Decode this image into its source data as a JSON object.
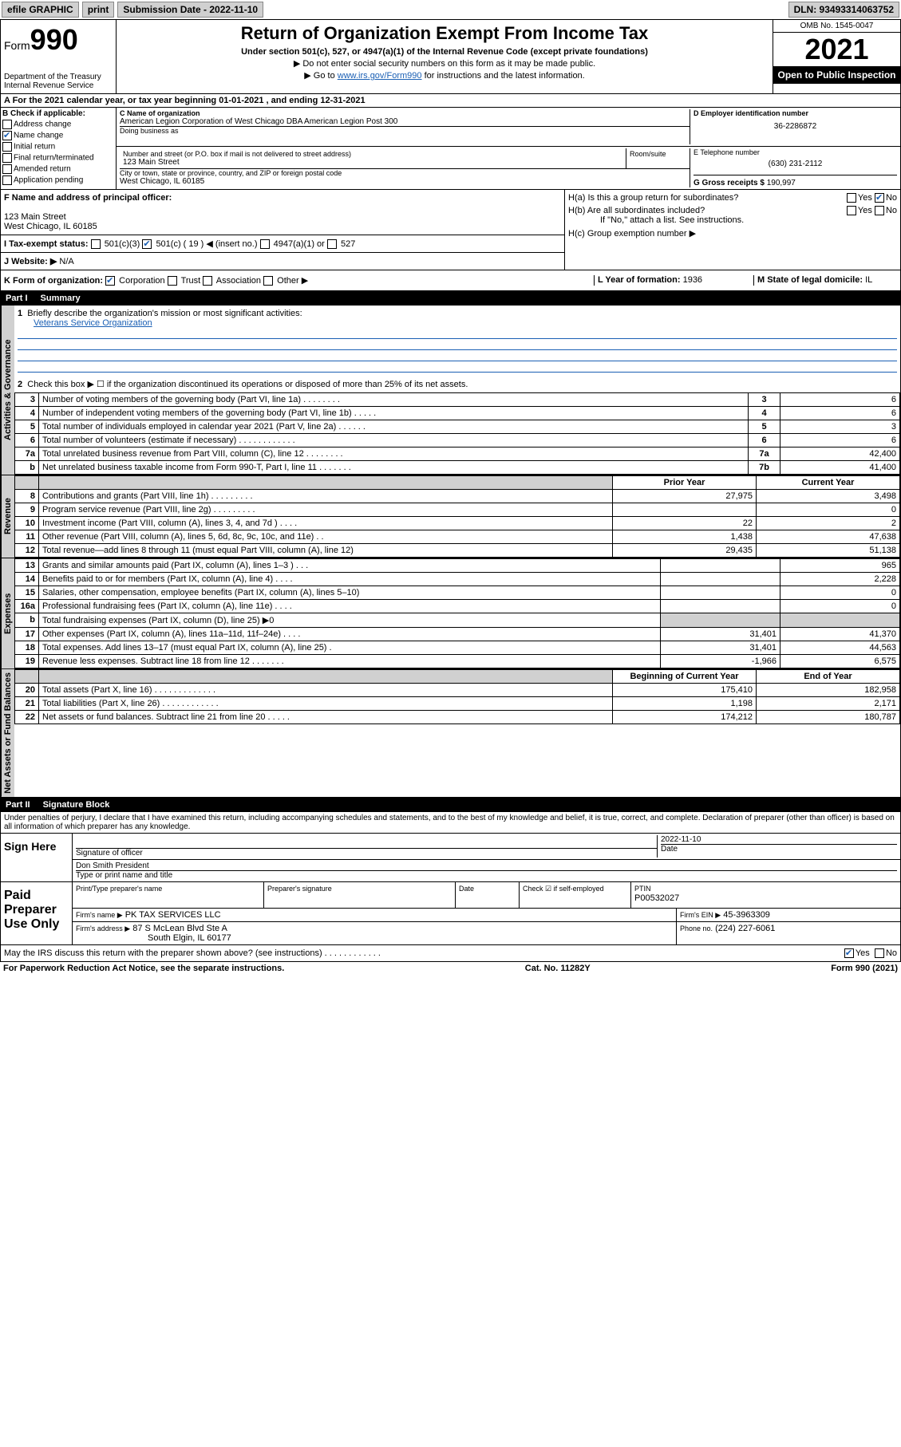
{
  "topbar": {
    "efile": "efile GRAPHIC",
    "print": "print",
    "submission_label": "Submission Date - 2022-11-10",
    "dln": "DLN: 93493314063752"
  },
  "header": {
    "form_word": "Form",
    "form_num": "990",
    "dept": "Department of the Treasury",
    "irs": "Internal Revenue Service",
    "title": "Return of Organization Exempt From Income Tax",
    "subtitle": "Under section 501(c), 527, or 4947(a)(1) of the Internal Revenue Code (except private foundations)",
    "note1": "▶ Do not enter social security numbers on this form as it may be made public.",
    "note2_pre": "▶ Go to ",
    "note2_link": "www.irs.gov/Form990",
    "note2_post": " for instructions and the latest information.",
    "omb": "OMB No. 1545-0047",
    "year": "2021",
    "open": "Open to Public Inspection"
  },
  "rowA": "A For the 2021 calendar year, or tax year beginning 01-01-2021    , and ending 12-31-2021",
  "colB": {
    "title": "B Check if applicable:",
    "opts": [
      "Address change",
      "Name change",
      "Initial return",
      "Final return/terminated",
      "Amended return",
      "Application pending"
    ]
  },
  "colC": {
    "name_label": "C Name of organization",
    "name": "American Legion Corporation of West Chicago DBA American Legion Post 300",
    "dba_label": "Doing business as",
    "addr_label": "Number and street (or P.O. box if mail is not delivered to street address)",
    "room_label": "Room/suite",
    "addr": "123 Main Street",
    "city_label": "City or town, state or province, country, and ZIP or foreign postal code",
    "city": "West Chicago, IL  60185"
  },
  "colD": {
    "label": "D Employer identification number",
    "val": "36-2286872"
  },
  "colE": {
    "label": "E Telephone number",
    "val": "(630) 231-2112"
  },
  "colG": {
    "label": "G Gross receipts $",
    "val": "190,997"
  },
  "rowF": {
    "label": "F  Name and address of principal officer:",
    "addr1": "123 Main Street",
    "addr2": "West Chicago, IL  60185"
  },
  "rowH": {
    "ha": "H(a)  Is this a group return for subordinates?",
    "hb": "H(b)  Are all subordinates included?",
    "hb_note": "If \"No,\" attach a list. See instructions.",
    "hc": "H(c)  Group exemption number ▶",
    "yes": "Yes",
    "no": "No"
  },
  "rowI": {
    "label": "I   Tax-exempt status:",
    "o1": "501(c)(3)",
    "o2": "501(c) ( 19 ) ◀ (insert no.)",
    "o3": "4947(a)(1) or",
    "o4": "527"
  },
  "rowJ": {
    "label": "J   Website: ▶",
    "val": "N/A"
  },
  "rowK": {
    "label": "K Form of organization:",
    "o1": "Corporation",
    "o2": "Trust",
    "o3": "Association",
    "o4": "Other ▶"
  },
  "rowL": {
    "label": "L Year of formation:",
    "val": "1936"
  },
  "rowM": {
    "label": "M State of legal domicile:",
    "val": "IL"
  },
  "partI": {
    "title": "Part I",
    "name": "Summary",
    "q1": "Briefly describe the organization's mission or most significant activities:",
    "q1a": "Veterans Service Organization",
    "q2": "Check this box ▶ ☐  if the organization discontinued its operations or disposed of more than 25% of its net assets.",
    "side_gov": "Activities & Governance",
    "side_rev": "Revenue",
    "side_exp": "Expenses",
    "side_net": "Net Assets or Fund Balances",
    "lines_gov": [
      {
        "n": "3",
        "t": "Number of voting members of the governing body (Part VI, line 1a)   .    .    .    .    .    .    .    .",
        "b": "3",
        "v": "6"
      },
      {
        "n": "4",
        "t": "Number of independent voting members of the governing body (Part VI, line 1b)   .    .    .    .    .",
        "b": "4",
        "v": "6"
      },
      {
        "n": "5",
        "t": "Total number of individuals employed in calendar year 2021 (Part V, line 2a)   .    .    .    .    .    .",
        "b": "5",
        "v": "3"
      },
      {
        "n": "6",
        "t": "Total number of volunteers (estimate if necessary)   .    .    .    .    .    .    .    .    .    .    .    .",
        "b": "6",
        "v": "6"
      },
      {
        "n": "7a",
        "t": "Total unrelated business revenue from Part VIII, column (C), line 12   .    .    .    .    .    .    .    .",
        "b": "7a",
        "v": "42,400"
      },
      {
        "n": "b",
        "t": "Net unrelated business taxable income from Form 990-T, Part I, line 11   .    .    .    .    .    .    .",
        "b": "7b",
        "v": "41,400"
      }
    ],
    "col_prior": "Prior Year",
    "col_curr": "Current Year",
    "lines_rev": [
      {
        "n": "8",
        "t": "Contributions and grants (Part VIII, line 1h)   .    .    .    .    .    .    .    .    .",
        "p": "27,975",
        "c": "3,498"
      },
      {
        "n": "9",
        "t": "Program service revenue (Part VIII, line 2g)   .    .    .    .    .    .    .    .    .",
        "p": "",
        "c": "0"
      },
      {
        "n": "10",
        "t": "Investment income (Part VIII, column (A), lines 3, 4, and 7d )   .    .    .    .",
        "p": "22",
        "c": "2"
      },
      {
        "n": "11",
        "t": "Other revenue (Part VIII, column (A), lines 5, 6d, 8c, 9c, 10c, and 11e)    .    .",
        "p": "1,438",
        "c": "47,638"
      },
      {
        "n": "12",
        "t": "Total revenue—add lines 8 through 11 (must equal Part VIII, column (A), line 12)",
        "p": "29,435",
        "c": "51,138"
      }
    ],
    "lines_exp": [
      {
        "n": "13",
        "t": "Grants and similar amounts paid (Part IX, column (A), lines 1–3 )   .    .    .",
        "p": "",
        "c": "965"
      },
      {
        "n": "14",
        "t": "Benefits paid to or for members (Part IX, column (A), line 4)   .    .    .    .",
        "p": "",
        "c": "2,228"
      },
      {
        "n": "15",
        "t": "Salaries, other compensation, employee benefits (Part IX, column (A), lines 5–10)",
        "p": "",
        "c": "0"
      },
      {
        "n": "16a",
        "t": "Professional fundraising fees (Part IX, column (A), line 11e)   .    .    .    .",
        "p": "",
        "c": "0"
      },
      {
        "n": "b",
        "t": "Total fundraising expenses (Part IX, column (D), line 25) ▶0",
        "p": "shade",
        "c": "shade"
      },
      {
        "n": "17",
        "t": "Other expenses (Part IX, column (A), lines 11a–11d, 11f–24e)   .    .    .    .",
        "p": "31,401",
        "c": "41,370"
      },
      {
        "n": "18",
        "t": "Total expenses. Add lines 13–17 (must equal Part IX, column (A), line 25)   .",
        "p": "31,401",
        "c": "44,563"
      },
      {
        "n": "19",
        "t": "Revenue less expenses. Subtract line 18 from line 12   .    .    .    .    .    .    .",
        "p": "-1,966",
        "c": "6,575"
      }
    ],
    "col_beg": "Beginning of Current Year",
    "col_end": "End of Year",
    "lines_net": [
      {
        "n": "20",
        "t": "Total assets (Part X, line 16)   .    .    .    .    .    .    .    .    .    .    .    .    .",
        "p": "175,410",
        "c": "182,958"
      },
      {
        "n": "21",
        "t": "Total liabilities (Part X, line 26)   .    .    .    .    .    .    .    .    .    .    .    .",
        "p": "1,198",
        "c": "2,171"
      },
      {
        "n": "22",
        "t": "Net assets or fund balances. Subtract line 21 from line 20   .    .    .    .    .",
        "p": "174,212",
        "c": "180,787"
      }
    ]
  },
  "partII": {
    "title": "Part II",
    "name": "Signature Block",
    "perjury": "Under penalties of perjury, I declare that I have examined this return, including accompanying schedules and statements, and to the best of my knowledge and belief, it is true, correct, and complete. Declaration of preparer (other than officer) is based on all information of which preparer has any knowledge.",
    "sign_here": "Sign Here",
    "sig_officer": "Signature of officer",
    "sig_date": "Date",
    "sig_date_val": "2022-11-10",
    "officer_name": "Don Smith  President",
    "type_name": "Type or print name and title",
    "paid": "Paid Preparer Use Only",
    "prep_name": "Print/Type preparer's name",
    "prep_sig": "Preparer's signature",
    "date": "Date",
    "check_self": "Check ☑ if self-employed",
    "ptin": "PTIN",
    "ptin_val": "P00532027",
    "firm_name_l": "Firm's name    ▶",
    "firm_name": "PK TAX SERVICES LLC",
    "firm_ein_l": "Firm's EIN ▶",
    "firm_ein": "45-3963309",
    "firm_addr_l": "Firm's address ▶",
    "firm_addr1": "87 S McLean Blvd Ste A",
    "firm_addr2": "South Elgin, IL  60177",
    "phone_l": "Phone no.",
    "phone": "(224) 227-6061",
    "discuss": "May the IRS discuss this return with the preparer shown above? (see instructions)   .    .    .    .    .    .    .    .    .    .    .    .",
    "yes": "Yes",
    "no": "No"
  },
  "footer": {
    "pra": "For Paperwork Reduction Act Notice, see the separate instructions.",
    "cat": "Cat. No. 11282Y",
    "form": "Form 990 (2021)"
  }
}
